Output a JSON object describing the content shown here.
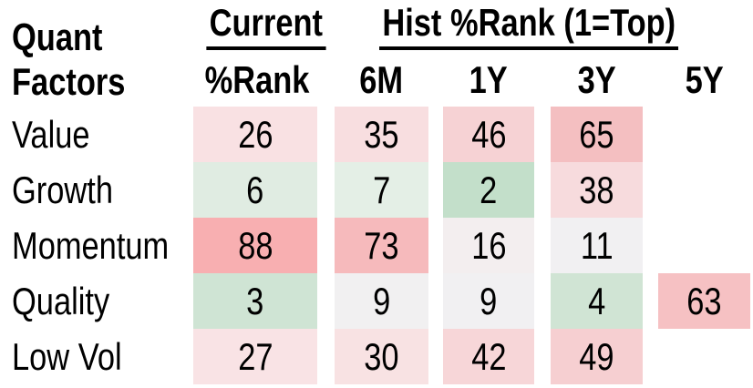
{
  "title": {
    "line1": "Quant",
    "line2": "Factors"
  },
  "header": {
    "current_group": "Current",
    "hist_group": "Hist %Rank (1=Top)",
    "sub_columns": [
      "%Rank",
      "6M",
      "1Y",
      "3Y",
      "5Y"
    ]
  },
  "rows": [
    {
      "label": "Value",
      "cells": [
        {
          "value": "26",
          "color": "#f9e1e3"
        },
        {
          "value": "35",
          "color": "#f8dee0"
        },
        {
          "value": "46",
          "color": "#f6d2d4"
        },
        {
          "value": "65",
          "color": "#f4bfc1"
        },
        {
          "value": "",
          "color": ""
        }
      ]
    },
    {
      "label": "Growth",
      "cells": [
        {
          "value": "6",
          "color": "#e0ece2"
        },
        {
          "value": "7",
          "color": "#e4efe6"
        },
        {
          "value": "2",
          "color": "#c3dfca"
        },
        {
          "value": "38",
          "color": "#f7dbdd"
        },
        {
          "value": "",
          "color": ""
        }
      ]
    },
    {
      "label": "Momentum",
      "cells": [
        {
          "value": "88",
          "color": "#f8afb1"
        },
        {
          "value": "73",
          "color": "#f6babc"
        },
        {
          "value": "16",
          "color": "#f3eeef"
        },
        {
          "value": "11",
          "color": "#f1f0f2"
        },
        {
          "value": "",
          "color": ""
        }
      ]
    },
    {
      "label": "Quality",
      "cells": [
        {
          "value": "3",
          "color": "#cfe4d4"
        },
        {
          "value": "9",
          "color": "#f1f0f1"
        },
        {
          "value": "9",
          "color": "#f1f0f2"
        },
        {
          "value": "4",
          "color": "#d0e4d4"
        },
        {
          "value": "63",
          "color": "#f6c1c3"
        }
      ]
    },
    {
      "label": "Low Vol",
      "cells": [
        {
          "value": "27",
          "color": "#f9e3e5"
        },
        {
          "value": "30",
          "color": "#f8e2e3"
        },
        {
          "value": "42",
          "color": "#f7d6d8"
        },
        {
          "value": "49",
          "color": "#f6cfd1"
        },
        {
          "value": "",
          "color": ""
        }
      ]
    }
  ],
  "chart_data": {
    "type": "heatmap",
    "title": "Quant Factors %Rank (1=Top)",
    "rows": [
      "Value",
      "Growth",
      "Momentum",
      "Quality",
      "Low Vol"
    ],
    "columns": [
      "Current %Rank",
      "6M",
      "1Y",
      "3Y",
      "5Y"
    ],
    "values": [
      [
        26,
        35,
        46,
        65,
        null
      ],
      [
        6,
        7,
        2,
        38,
        null
      ],
      [
        88,
        73,
        16,
        11,
        null
      ],
      [
        3,
        9,
        9,
        4,
        63
      ],
      [
        27,
        30,
        42,
        49,
        null
      ]
    ],
    "value_range": [
      1,
      100
    ],
    "color_scale": {
      "low": "#b9d9bf",
      "mid": "#f1f0f2",
      "high": "#f8afb1"
    },
    "legend": "none",
    "grid": "off"
  }
}
